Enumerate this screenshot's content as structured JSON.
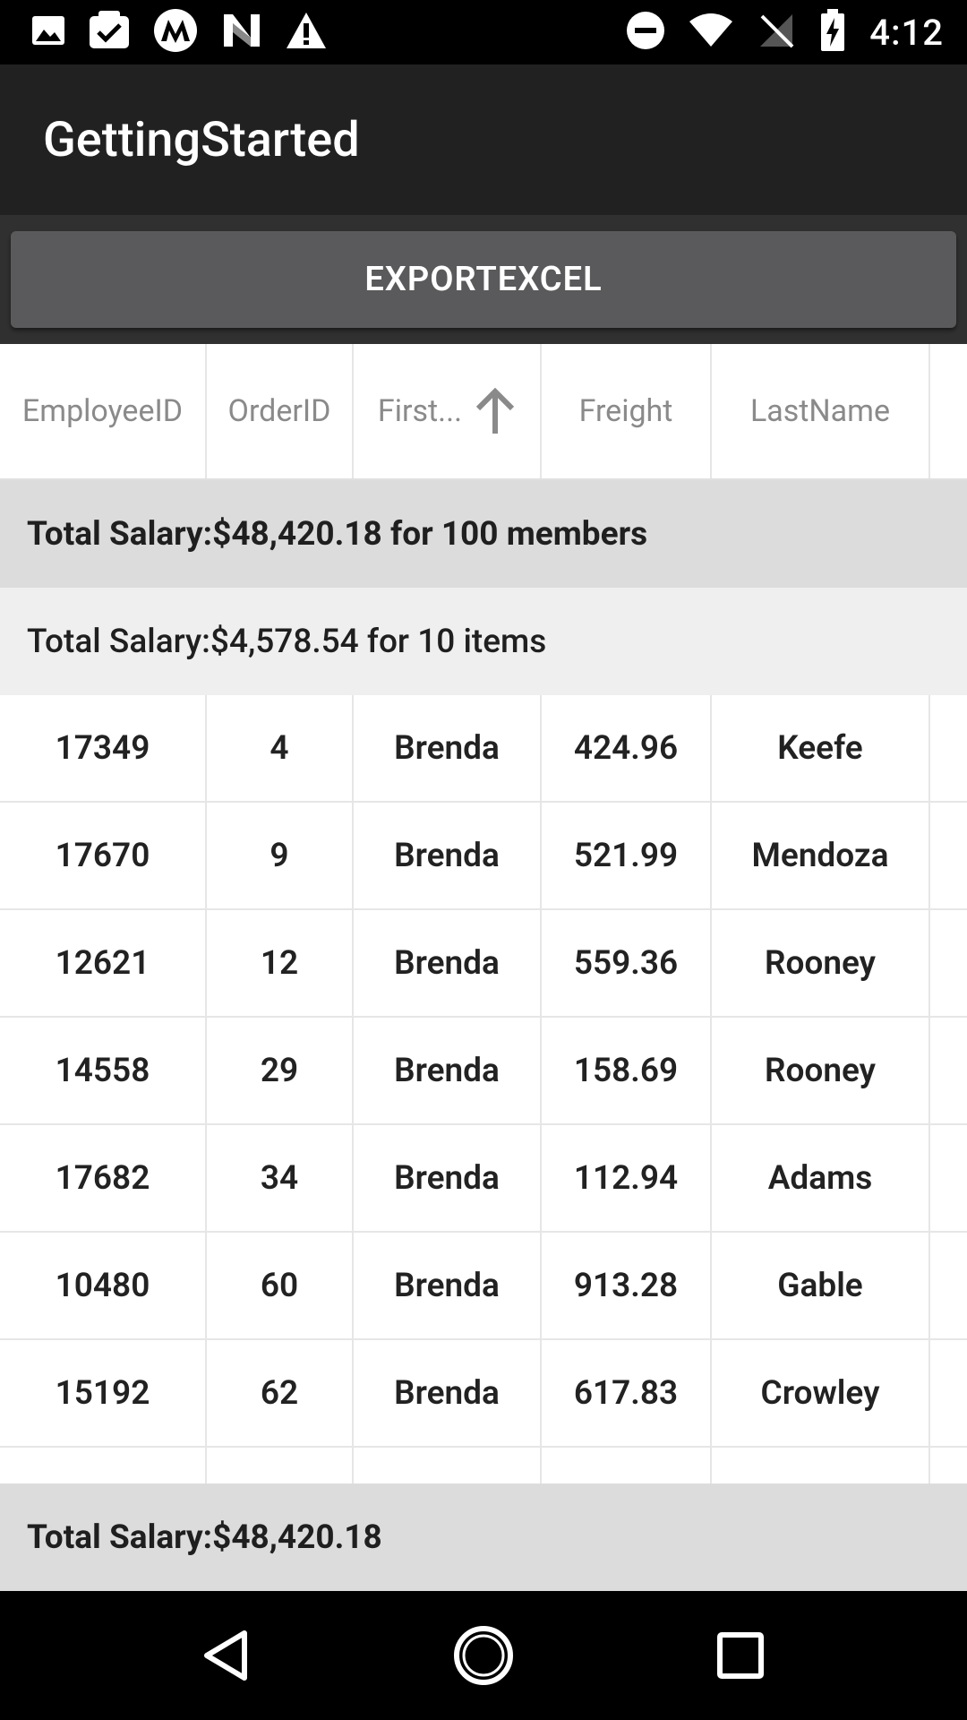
{
  "status_bar": {
    "time": "4:12",
    "left_icons": [
      "image-icon",
      "task-check-icon",
      "motorola-icon",
      "n-logo-icon",
      "warning-icon"
    ],
    "right_icons": [
      "do-not-disturb-icon",
      "wifi-icon",
      "no-signal-icon",
      "battery-charging-icon"
    ]
  },
  "app_bar": {
    "title": "GettingStarted"
  },
  "toolbar": {
    "export_label": "EXPORTEXCEL"
  },
  "grid": {
    "columns": [
      "EmployeeID",
      "OrderID",
      "First...",
      "Freight",
      "LastName"
    ],
    "sorted_column": "First...",
    "sort_direction": "ascending",
    "table_summary": "Total Salary:$48,420.18 for 100 members",
    "group_summary": "Total Salary:$4,578.54 for 10 items",
    "rows": [
      [
        "17349",
        "4",
        "Brenda",
        "424.96",
        "Keefe"
      ],
      [
        "17670",
        "9",
        "Brenda",
        "521.99",
        "Mendoza"
      ],
      [
        "12621",
        "12",
        "Brenda",
        "559.36",
        "Rooney"
      ],
      [
        "14558",
        "29",
        "Brenda",
        "158.69",
        "Rooney"
      ],
      [
        "17682",
        "34",
        "Brenda",
        "112.94",
        "Adams"
      ],
      [
        "10480",
        "60",
        "Brenda",
        "913.28",
        "Gable"
      ],
      [
        "15192",
        "62",
        "Brenda",
        "617.83",
        "Crowley"
      ]
    ],
    "footer_summary": "Total Salary:$48,420.18"
  },
  "nav_bar": {
    "buttons": [
      "back-icon",
      "home-icon",
      "recents-icon"
    ]
  },
  "colors": {
    "status_bar": "#000000",
    "app_bar": "#212121",
    "button_strip": "#303030",
    "button": "#5a5a5c",
    "summary_main": "#dcdcdc",
    "summary_group": "#efefef"
  }
}
